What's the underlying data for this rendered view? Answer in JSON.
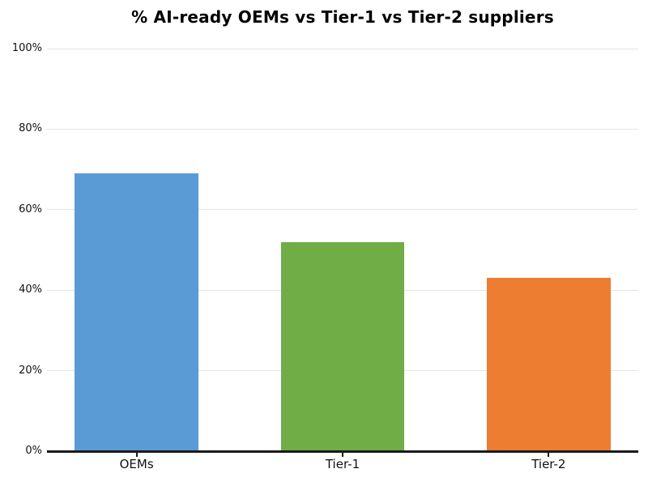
{
  "chart_data": {
    "type": "bar",
    "title": "% AI-ready OEMs vs Tier-1 vs Tier-2 suppliers",
    "categories": [
      "OEMs",
      "Tier-1",
      "Tier-2"
    ],
    "values": [
      69,
      52,
      43
    ],
    "unit": "%",
    "bar_colors": [
      "#5b9bd5",
      "#70ad47",
      "#ed7d31"
    ],
    "xlabel": "",
    "ylabel": "",
    "ylim": [
      0,
      100
    ],
    "ytick_values": [
      0,
      20,
      40,
      60,
      80,
      100
    ],
    "ytick_labels": [
      "0%",
      "20%",
      "40%",
      "60%",
      "80%",
      "100%"
    ],
    "grid": true,
    "grid_color": "#e5e5e5",
    "axis_color": "#1a1a1a",
    "text_color": "#111111",
    "background_color": "#ffffff",
    "legend": false
  }
}
